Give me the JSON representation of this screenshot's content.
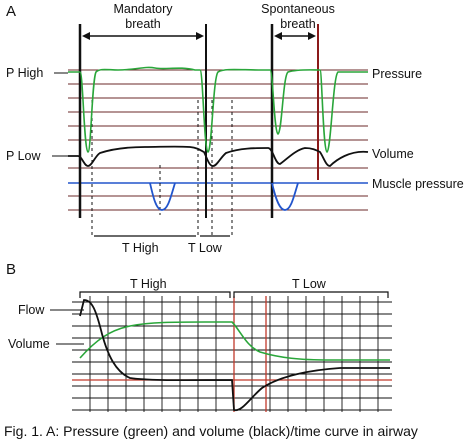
{
  "figure": {
    "panel_a": {
      "letter": "A",
      "mandatory": {
        "line1": "Mandatory",
        "line2": "breath"
      },
      "spontaneous": {
        "line1": "Spontaneous",
        "line2": "breath"
      },
      "left_labels": {
        "p_high": "P High",
        "p_low": "P Low"
      },
      "right_labels": {
        "pressure": "Pressure",
        "volume": "Volume",
        "muscle": "Muscle pressure"
      },
      "bottom_labels": {
        "t_high": "T High",
        "t_low": "T Low"
      }
    },
    "panel_b": {
      "letter": "B",
      "top_labels": {
        "t_high": "T High",
        "t_low": "T Low"
      },
      "left_labels": {
        "flow": "Flow",
        "volume": "Volume"
      }
    },
    "caption": "Fig. 1. A: Pressure (green) and volume (black)/time curve in airway",
    "colors": {
      "pressure": "#2aa63a",
      "volume": "#111111",
      "muscle": "#2255cc",
      "grid_red": "#c0392b",
      "grid_blue": "#2255cc"
    }
  }
}
